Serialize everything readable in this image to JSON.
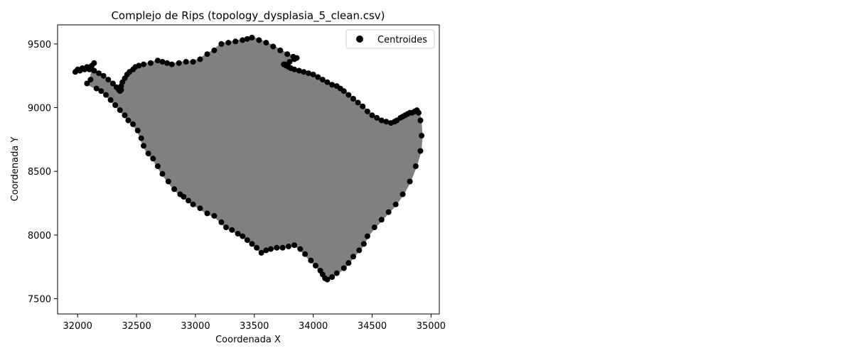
{
  "chart_data": {
    "type": "scatter",
    "title": "Complejo de Rips (topology_dysplasia_5_clean.csv)",
    "xlabel": "Coordenada X",
    "ylabel": "Coordenada Y",
    "xlim": [
      31830,
      35070
    ],
    "ylim": [
      7380,
      9650
    ],
    "xticks": [
      32000,
      32500,
      33000,
      33500,
      34000,
      34500,
      35000
    ],
    "yticks": [
      7500,
      8000,
      8500,
      9000,
      9500
    ],
    "legend": {
      "entries": [
        "Centroides"
      ],
      "placement": "top-right"
    },
    "grid": false,
    "colors": {
      "complex_fill": "#808080",
      "centroids": "#000000"
    },
    "series": [
      {
        "name": "Centroides",
        "marker": "circle",
        "x": [
          31980,
          32000,
          32040,
          32080,
          32120,
          32140,
          32110,
          32080,
          32160,
          32200,
          32240,
          32280,
          32320,
          32360,
          32400,
          32430,
          32470,
          32510,
          32540,
          32560,
          32600,
          32640,
          32680,
          32720,
          32770,
          32820,
          32870,
          32900,
          32940,
          32980,
          33040,
          33100,
          33160,
          33220,
          33260,
          33310,
          33360,
          33400,
          33440,
          33480,
          33520,
          33560,
          33600,
          33640,
          33690,
          33740,
          33790,
          33840,
          33890,
          33930,
          33980,
          34020,
          34060,
          34080,
          34100,
          34120,
          34160,
          34200,
          34260,
          34300,
          34340,
          34390,
          34430,
          34460,
          34520,
          34580,
          34640,
          34700,
          34760,
          34820,
          34870,
          34910,
          34920,
          34910,
          34895,
          34880,
          34860,
          34840,
          34820,
          34800,
          34780,
          34760,
          34740,
          34710,
          34690,
          34660,
          34620,
          34580,
          34540,
          34500,
          34460,
          34420,
          34380,
          34340,
          34300,
          34260,
          34230,
          34200,
          34160,
          34120,
          34080,
          34040,
          34000,
          33960,
          33920,
          33880,
          33840,
          33810,
          33790,
          33770,
          33750,
          33760,
          33800,
          33840,
          33860,
          33830,
          33780,
          33720,
          33660,
          33600,
          33540,
          33480,
          33440,
          33400,
          33340,
          33280,
          33220,
          33160,
          33100,
          33040,
          32980,
          32920,
          32860,
          32800,
          32760,
          32720,
          32680,
          32620,
          32560,
          32520,
          32490,
          32470,
          32440,
          32420,
          32400,
          32380,
          32370,
          32360,
          32370,
          32360,
          32350,
          32330,
          32300,
          32260,
          32220,
          32180,
          32140,
          32100,
          32060,
          32020
        ],
        "y": [
          9280,
          9300,
          9310,
          9320,
          9330,
          9350,
          9220,
          9190,
          9150,
          9130,
          9100,
          9060,
          9020,
          8980,
          8940,
          8900,
          8870,
          8820,
          8760,
          8700,
          8640,
          8600,
          8540,
          8480,
          8420,
          8360,
          8320,
          8300,
          8270,
          8240,
          8210,
          8170,
          8150,
          8100,
          8060,
          8040,
          8010,
          7990,
          7960,
          7930,
          7900,
          7860,
          7880,
          7890,
          7900,
          7900,
          7910,
          7920,
          7890,
          7850,
          7800,
          7760,
          7720,
          7690,
          7660,
          7650,
          7670,
          7700,
          7740,
          7780,
          7830,
          7880,
          7930,
          7990,
          8060,
          8120,
          8180,
          8240,
          8320,
          8420,
          8540,
          8660,
          8780,
          8900,
          8960,
          8980,
          8970,
          8960,
          8960,
          8950,
          8940,
          8930,
          8920,
          8900,
          8890,
          8880,
          8890,
          8900,
          8920,
          8940,
          8970,
          9010,
          9040,
          9070,
          9100,
          9130,
          9150,
          9170,
          9180,
          9200,
          9220,
          9240,
          9260,
          9270,
          9280,
          9290,
          9300,
          9310,
          9320,
          9330,
          9340,
          9340,
          9360,
          9380,
          9390,
          9400,
          9420,
          9450,
          9480,
          9510,
          9530,
          9550,
          9540,
          9530,
          9520,
          9510,
          9500,
          9450,
          9420,
          9380,
          9360,
          9360,
          9350,
          9340,
          9350,
          9360,
          9370,
          9350,
          9340,
          9330,
          9320,
          9300,
          9280,
          9260,
          9230,
          9200,
          9170,
          9150,
          9140,
          9130,
          9140,
          9160,
          9190,
          9220,
          9250,
          9270,
          9290,
          9300,
          9300,
          9290
        ]
      }
    ]
  }
}
